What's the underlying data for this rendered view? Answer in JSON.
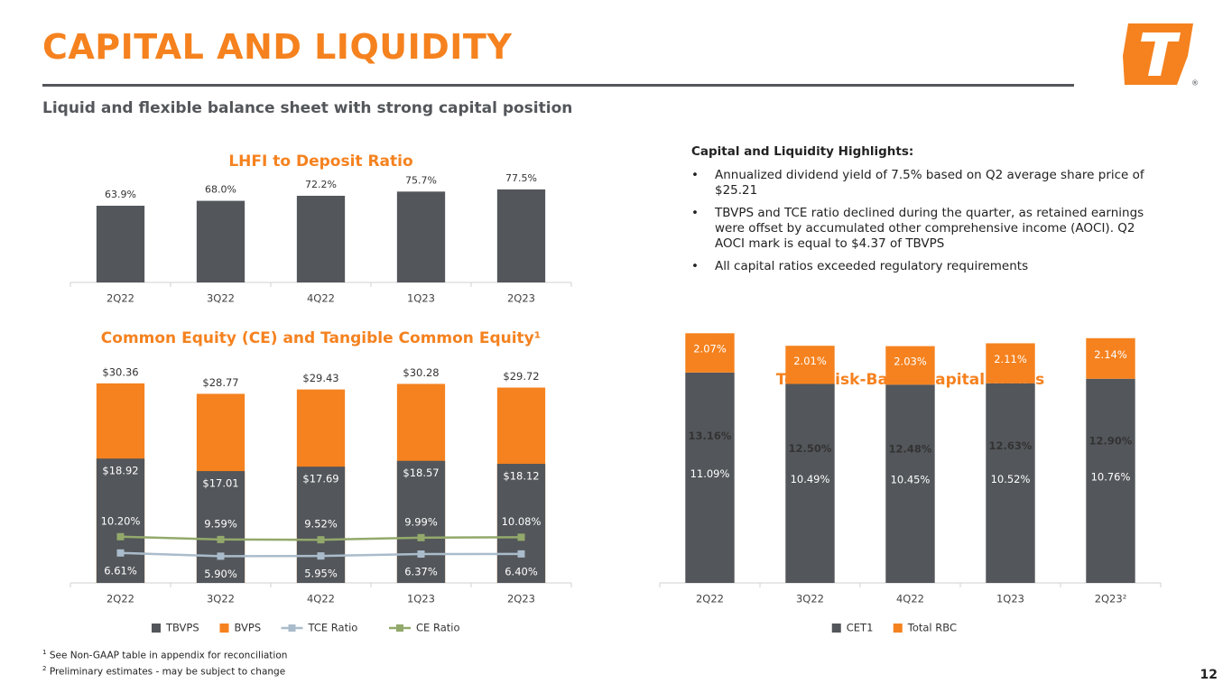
{
  "header": {
    "title": "CAPITAL AND LIQUIDITY",
    "subtitle": "Liquid and flexible balance sheet with strong capital position"
  },
  "highlights": {
    "heading": "Capital and Liquidity Highlights:",
    "bullets": [
      "Annualized dividend yield of 7.5% based on Q2 average share price of $25.21",
      "TBVPS and TCE ratio declined during the quarter, as retained earnings were offset by accumulated other comprehensive income (AOCI). Q2 AOCI mark is equal to $4.37 of TBVPS",
      "All capital ratios exceeded regulatory requirements"
    ]
  },
  "chart_data": [
    {
      "type": "bar",
      "title": "LHFI to Deposit Ratio",
      "categories": [
        "2Q22",
        "3Q22",
        "4Q22",
        "1Q23",
        "2Q23"
      ],
      "values": [
        63.9,
        68.0,
        72.2,
        75.7,
        77.5
      ],
      "value_labels": [
        "63.9%",
        "68.0%",
        "72.2%",
        "75.7%",
        "77.5%"
      ],
      "color": "#53565a",
      "ylim": [
        0,
        100
      ]
    },
    {
      "type": "bar",
      "title": "Common Equity (CE) and Tangible Common Equity¹",
      "bar_mode": "overlap",
      "categories": [
        "2Q22",
        "3Q22",
        "4Q22",
        "1Q23",
        "2Q23"
      ],
      "ylim": [
        0,
        32.4
      ],
      "y2lim": [
        0,
        47
      ],
      "series": [
        {
          "name": "TBVPS",
          "color": "#53565a",
          "values": [
            18.92,
            17.01,
            17.69,
            18.57,
            18.12
          ],
          "value_labels": [
            "$18.92",
            "$17.01",
            "$17.69",
            "$18.57",
            "$18.12"
          ]
        },
        {
          "name": "BVPS",
          "color": "#f5821f",
          "values": [
            30.36,
            28.77,
            29.43,
            30.28,
            29.72
          ],
          "value_labels": [
            "$30.36",
            "$28.77",
            "$29.43",
            "$30.28",
            "$29.72"
          ]
        },
        {
          "name": "TCE Ratio",
          "type": "line",
          "axis": "y2",
          "color": "#aabccb",
          "values": [
            6.61,
            5.9,
            5.95,
            6.37,
            6.4
          ],
          "value_labels": [
            "6.61%",
            "5.90%",
            "5.95%",
            "6.37%",
            "6.40%"
          ]
        },
        {
          "name": "CE Ratio",
          "type": "line",
          "axis": "y2",
          "color": "#93a96b",
          "values": [
            10.2,
            9.59,
            9.52,
            9.99,
            10.08
          ],
          "value_labels": [
            "10.20%",
            "9.59%",
            "9.52%",
            "9.99%",
            "10.08%"
          ]
        }
      ]
    },
    {
      "type": "bar",
      "title": "Total Risk-Based Capital Ratios",
      "bar_mode": "stacked",
      "categories": [
        "2Q22",
        "3Q22",
        "4Q22",
        "1Q23",
        "2Q23²"
      ],
      "ylim": [
        6,
        13.8
      ],
      "series": [
        {
          "name": "CET1",
          "color": "#53565a",
          "values": [
            11.09,
            10.49,
            10.45,
            10.52,
            10.76
          ],
          "value_labels": [
            "11.09%",
            "10.49%",
            "10.45%",
            "10.52%",
            "10.76%"
          ]
        },
        {
          "name": "Total RBC",
          "color": "#f5821f",
          "values": [
            2.07,
            2.01,
            2.03,
            2.11,
            2.14
          ],
          "value_labels": [
            "2.07%",
            "2.01%",
            "2.03%",
            "2.11%",
            "2.14%"
          ]
        }
      ],
      "totals": [
        13.16,
        12.5,
        12.48,
        12.63,
        12.9
      ],
      "total_labels": [
        "13.16%",
        "12.50%",
        "12.48%",
        "12.63%",
        "12.90%"
      ]
    }
  ],
  "footnotes": [
    {
      "mark": "1",
      "text": "See Non-GAAP table in appendix for reconciliation"
    },
    {
      "mark": "2",
      "text": "Preliminary estimates - may be subject to change"
    }
  ],
  "page_number": "12"
}
